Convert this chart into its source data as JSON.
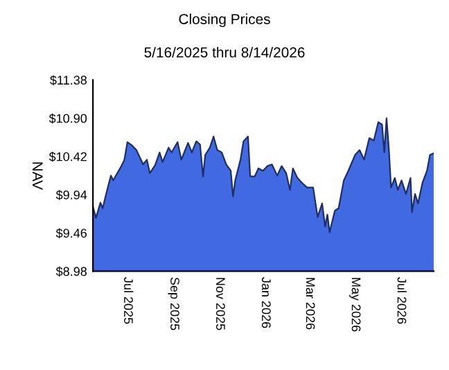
{
  "chart_data": {
    "type": "area",
    "title": "Closing Prices",
    "subtitle": "5/16/2025 thru 8/14/2026",
    "ylabel": "NAV",
    "x": [
      "2025-05-16",
      "2025-05-20",
      "2025-05-26",
      "2025-05-29",
      "2025-06-04",
      "2025-06-09",
      "2025-06-12",
      "2025-06-23",
      "2025-06-27",
      "2025-07-01",
      "2025-07-07",
      "2025-07-13",
      "2025-07-22",
      "2025-07-27",
      "2025-07-31",
      "2025-08-07",
      "2025-08-13",
      "2025-08-17",
      "2025-08-25",
      "2025-08-29",
      "2025-09-06",
      "2025-09-11",
      "2025-09-20",
      "2025-09-25",
      "2025-10-01",
      "2025-10-06",
      "2025-10-10",
      "2025-10-13",
      "2025-10-19",
      "2025-10-24",
      "2025-10-29",
      "2025-11-04",
      "2025-11-10",
      "2025-11-16",
      "2025-11-19",
      "2025-11-22",
      "2025-11-29",
      "2025-12-03",
      "2025-12-09",
      "2025-12-12",
      "2025-12-18",
      "2025-12-23",
      "2025-12-29",
      "2026-01-04",
      "2026-01-10",
      "2026-01-17",
      "2026-01-23",
      "2026-01-29",
      "2026-02-03",
      "2026-02-07",
      "2026-02-13",
      "2026-02-19",
      "2026-02-26",
      "2026-03-06",
      "2026-03-12",
      "2026-03-18",
      "2026-03-22",
      "2026-03-25",
      "2026-03-28",
      "2026-04-04",
      "2026-04-09",
      "2026-04-16",
      "2026-04-22",
      "2026-05-01",
      "2026-05-07",
      "2026-05-13",
      "2026-05-20",
      "2026-05-26",
      "2026-06-01",
      "2026-06-06",
      "2026-06-09",
      "2026-06-12",
      "2026-06-15",
      "2026-06-18",
      "2026-06-23",
      "2026-06-27",
      "2026-07-02",
      "2026-07-08",
      "2026-07-14",
      "2026-07-16",
      "2026-07-20",
      "2026-07-24",
      "2026-07-30",
      "2026-08-05",
      "2026-08-09",
      "2026-08-14"
    ],
    "series": [
      {
        "color": "#4169e1",
        "values": [
          9.79,
          9.65,
          9.84,
          9.77,
          10.0,
          10.18,
          10.12,
          10.3,
          10.38,
          10.6,
          10.56,
          10.5,
          10.32,
          10.38,
          10.21,
          10.31,
          10.47,
          10.35,
          10.53,
          10.47,
          10.6,
          10.38,
          10.59,
          10.47,
          10.61,
          10.57,
          10.17,
          10.44,
          10.53,
          10.67,
          10.5,
          10.47,
          10.32,
          10.24,
          9.92,
          10.12,
          10.38,
          10.61,
          10.67,
          10.17,
          10.17,
          10.27,
          10.24,
          10.3,
          10.32,
          10.18,
          10.3,
          10.21,
          10.0,
          10.27,
          10.15,
          10.09,
          10.03,
          10.03,
          9.66,
          9.83,
          9.54,
          9.69,
          9.47,
          9.74,
          9.77,
          10.12,
          10.24,
          10.44,
          10.5,
          10.38,
          10.65,
          10.62,
          10.85,
          10.82,
          10.47,
          10.9,
          10.53,
          10.03,
          10.15,
          10.0,
          10.12,
          9.95,
          10.15,
          9.72,
          9.95,
          9.83,
          10.09,
          10.24,
          10.44,
          10.46
        ]
      }
    ],
    "xlim": [
      "2025-05-16",
      "2026-08-14"
    ],
    "xticks": [
      {
        "value": "2025-07-01",
        "label": "Jul 2025"
      },
      {
        "value": "2025-09-01",
        "label": "Sep 2025"
      },
      {
        "value": "2025-11-01",
        "label": "Nov 2025"
      },
      {
        "value": "2026-01-01",
        "label": "Jan 2026"
      },
      {
        "value": "2026-03-01",
        "label": "Mar 2026"
      },
      {
        "value": "2026-05-01",
        "label": "May 2026"
      },
      {
        "value": "2026-07-01",
        "label": "Jul 2026"
      }
    ],
    "ylim": [
      8.98,
      11.38
    ],
    "yticks": [
      {
        "value": 8.98,
        "label": "$8.98"
      },
      {
        "value": 9.46,
        "label": "$9.46"
      },
      {
        "value": 9.94,
        "label": "$9.94"
      },
      {
        "value": 10.42,
        "label": "$10.42"
      },
      {
        "value": 10.9,
        "label": "$10.90"
      },
      {
        "value": 11.38,
        "label": "$11.38"
      }
    ],
    "grid": false
  }
}
